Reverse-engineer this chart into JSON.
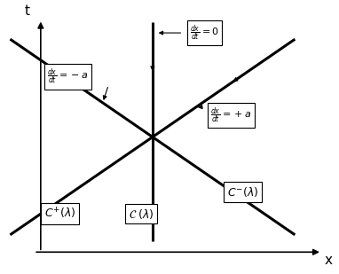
{
  "background": "white",
  "line_color": "black",
  "line_lw": 2.2,
  "axis_lw": 1.2,
  "xlabel": "x",
  "ylabel": "t",
  "box_label_Cplus": "$C^{+}(\\lambda)$",
  "box_label_C": "$\\mathcal{C}\\;(\\lambda)$",
  "box_label_Cminus": "$C^{-}(\\lambda)$",
  "box_label_dx0": "$\\frac{dx}{dt}=0$",
  "box_label_dxna": "$\\frac{dx}{dt}=-a$",
  "box_label_dxpa": "$\\frac{dx}{dt}=+a$",
  "ox": 0.45,
  "oy": 0.5,
  "ext_up": 0.42,
  "ext_down": 0.38,
  "ext_lr": 0.42,
  "slope_pa": 0.85,
  "slope_na": -0.85
}
